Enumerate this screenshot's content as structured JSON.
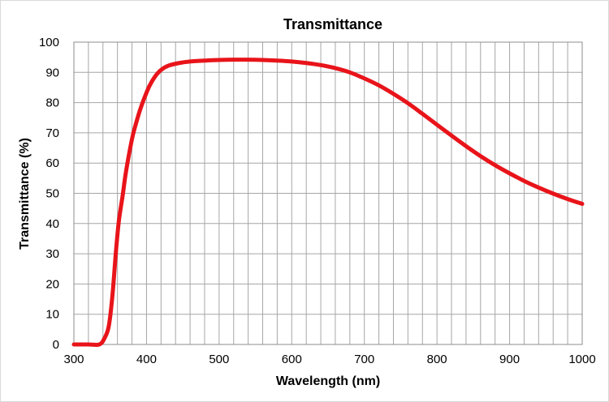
{
  "chart_data": {
    "type": "line",
    "title": "Transmittance",
    "xlabel": "Wavelength (nm)",
    "ylabel": "Transmittance (%)",
    "xlim": [
      300,
      1000
    ],
    "ylim": [
      0,
      100
    ],
    "x_ticks": [
      300,
      400,
      500,
      600,
      700,
      800,
      900,
      1000
    ],
    "y_ticks": [
      0,
      10,
      20,
      30,
      40,
      50,
      60,
      70,
      80,
      90,
      100
    ],
    "x_minor_step": 20,
    "grid": true,
    "legend": "none",
    "series": [
      {
        "name": "Transmittance",
        "color": "#e8141a",
        "x": [
          300,
          320,
          335,
          342,
          348,
          353,
          358,
          362,
          367,
          371,
          376,
          381,
          386,
          391,
          397,
          404,
          412,
          420,
          430,
          445,
          460,
          480,
          500,
          520,
          540,
          560,
          580,
          600,
          620,
          640,
          660,
          680,
          700,
          720,
          740,
          760,
          780,
          800,
          820,
          840,
          860,
          880,
          900,
          920,
          940,
          960,
          980,
          1000
        ],
        "y": [
          0,
          0,
          0,
          2,
          6,
          16,
          31,
          41,
          49,
          56,
          63,
          69,
          73.5,
          77.5,
          81.5,
          85.5,
          88.7,
          90.8,
          92.2,
          93.1,
          93.6,
          93.9,
          94.1,
          94.2,
          94.2,
          94.1,
          93.9,
          93.6,
          93.1,
          92.4,
          91.4,
          90.0,
          88.0,
          85.7,
          82.9,
          79.8,
          76.3,
          72.7,
          69.1,
          65.6,
          62.3,
          59.3,
          56.6,
          54.1,
          51.9,
          49.9,
          48.1,
          46.5
        ]
      }
    ]
  }
}
